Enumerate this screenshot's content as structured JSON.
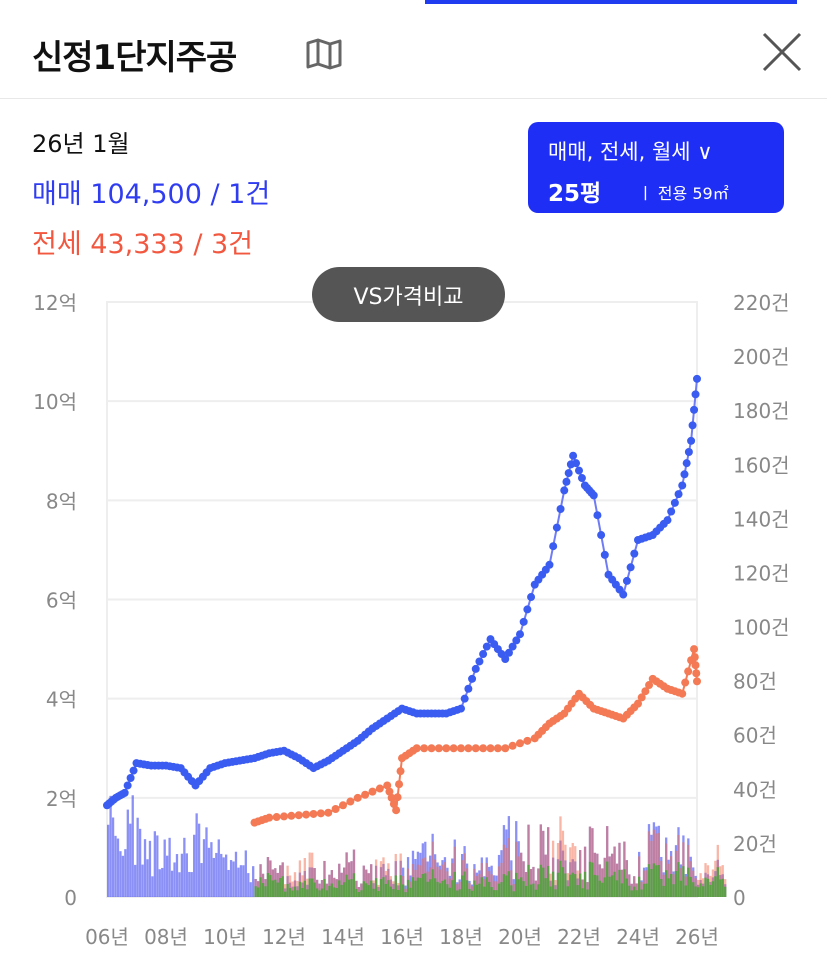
{
  "header": {
    "title": "신정1단지주공",
    "map_icon": "map-icon",
    "close_icon": "close-icon"
  },
  "summary": {
    "date": "26년 1월",
    "sale": "매매 104,500 / 1건",
    "jeonse": "전세 43,333 / 3건"
  },
  "filter": {
    "types": "매매, 전세, 월세 ∨",
    "size": "25평",
    "area": "ㅣ 전용 59㎡"
  },
  "vs_button": "VS가격비교",
  "colors": {
    "sale": "#3b5cf0",
    "sale_line": "#6f7cf5",
    "jeonse": "#f47a55",
    "wolse": "#3fae2a",
    "accent": "#1f2ef5"
  },
  "chart_data": {
    "type": "line",
    "left_axis": {
      "ticks": [
        "0",
        "2억",
        "4억",
        "6억",
        "8억",
        "10억",
        "12억"
      ],
      "range": [
        0,
        12
      ],
      "unit": "억"
    },
    "right_axis": {
      "ticks": [
        "0",
        "20건",
        "40건",
        "60건",
        "80건",
        "100건",
        "120건",
        "140건",
        "160건",
        "180건",
        "200건",
        "220건"
      ],
      "range": [
        0,
        220
      ],
      "unit": "건"
    },
    "x_ticks": [
      "06년",
      "08년",
      "10년",
      "12년",
      "14년",
      "16년",
      "18년",
      "20년",
      "22년",
      "24년",
      "26년"
    ],
    "x_range": [
      2006,
      2026
    ],
    "grid": true,
    "series": [
      {
        "name": "매매",
        "points": [
          [
            2006.0,
            1.85
          ],
          [
            2006.3,
            2.0
          ],
          [
            2006.6,
            2.1
          ],
          [
            2007.0,
            2.7
          ],
          [
            2007.5,
            2.65
          ],
          [
            2008.0,
            2.65
          ],
          [
            2008.5,
            2.6
          ],
          [
            2009.0,
            2.25
          ],
          [
            2009.5,
            2.6
          ],
          [
            2010.0,
            2.7
          ],
          [
            2010.5,
            2.75
          ],
          [
            2011.0,
            2.8
          ],
          [
            2011.5,
            2.9
          ],
          [
            2012.0,
            2.95
          ],
          [
            2012.5,
            2.8
          ],
          [
            2013.0,
            2.6
          ],
          [
            2013.5,
            2.75
          ],
          [
            2014.0,
            2.95
          ],
          [
            2014.5,
            3.15
          ],
          [
            2015.0,
            3.4
          ],
          [
            2015.5,
            3.6
          ],
          [
            2016.0,
            3.8
          ],
          [
            2016.5,
            3.7
          ],
          [
            2017.0,
            3.7
          ],
          [
            2017.5,
            3.7
          ],
          [
            2018.0,
            3.8
          ],
          [
            2018.5,
            4.6
          ],
          [
            2019.0,
            5.2
          ],
          [
            2019.5,
            4.8
          ],
          [
            2020.0,
            5.3
          ],
          [
            2020.5,
            6.3
          ],
          [
            2021.0,
            6.7
          ],
          [
            2021.5,
            8.2
          ],
          [
            2021.8,
            8.9
          ],
          [
            2022.2,
            8.3
          ],
          [
            2022.5,
            8.1
          ],
          [
            2023.0,
            6.5
          ],
          [
            2023.5,
            6.1
          ],
          [
            2024.0,
            7.2
          ],
          [
            2024.5,
            7.3
          ],
          [
            2025.0,
            7.6
          ],
          [
            2025.5,
            8.3
          ],
          [
            2025.8,
            9.2
          ],
          [
            2026.0,
            10.45
          ]
        ]
      },
      {
        "name": "전세",
        "points": [
          [
            2011.0,
            1.5
          ],
          [
            2011.5,
            1.6
          ],
          [
            2012.5,
            1.65
          ],
          [
            2013.5,
            1.7
          ],
          [
            2014.5,
            2.0
          ],
          [
            2015.5,
            2.25
          ],
          [
            2015.8,
            1.75
          ],
          [
            2016.0,
            2.8
          ],
          [
            2016.5,
            3.0
          ],
          [
            2017.5,
            3.0
          ],
          [
            2018.5,
            3.0
          ],
          [
            2019.5,
            3.0
          ],
          [
            2020.5,
            3.2
          ],
          [
            2021.0,
            3.5
          ],
          [
            2021.5,
            3.7
          ],
          [
            2022.0,
            4.1
          ],
          [
            2022.5,
            3.8
          ],
          [
            2023.0,
            3.7
          ],
          [
            2023.5,
            3.6
          ],
          [
            2024.0,
            3.9
          ],
          [
            2024.5,
            4.4
          ],
          [
            2025.0,
            4.2
          ],
          [
            2025.5,
            4.1
          ],
          [
            2025.9,
            5.0
          ],
          [
            2026.0,
            4.35
          ]
        ]
      }
    ],
    "volumes": {
      "start_year": 2006,
      "매매": [
        30,
        20,
        18,
        22,
        12,
        10,
        8,
        10,
        12,
        10,
        14,
        16,
        14,
        22,
        18,
        14,
        18,
        16,
        20,
        18,
        10
      ],
      "전세": [
        0,
        0,
        0,
        0,
        0,
        10,
        12,
        10,
        12,
        12,
        10,
        14,
        12,
        16,
        18,
        20,
        18,
        16,
        18,
        16,
        14
      ],
      "월세": [
        0,
        0,
        0,
        0,
        0,
        6,
        5,
        5,
        6,
        6,
        6,
        7,
        7,
        7,
        8,
        9,
        9,
        8,
        9,
        9,
        8
      ]
    }
  }
}
